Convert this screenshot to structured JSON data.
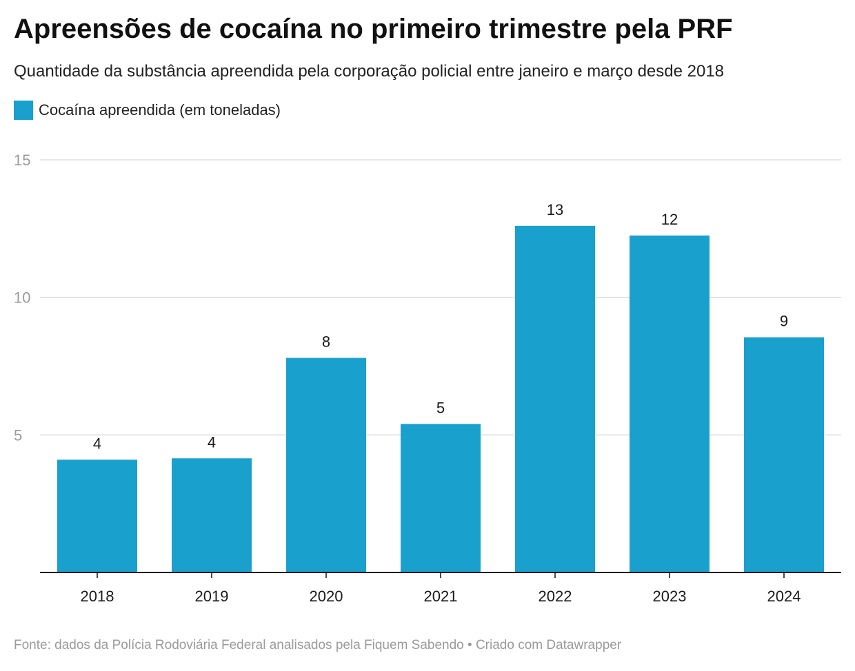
{
  "title": "Apreensões de cocaína no primeiro trimestre pela PRF",
  "subtitle": "Quantidade da substância apreendida pela corporação policial entre janeiro e março desde 2018",
  "footer": "Fonte: dados da Polícia Rodoviária Federal analisados pela Fiquem Sabendo • Criado com Datawrapper",
  "colors": {
    "bar": "#1aa0cd",
    "grid": "#dddddd",
    "axis": "#111111",
    "tick_label": "#9a9a9a"
  },
  "chart_data": {
    "type": "bar",
    "categories": [
      "2018",
      "2019",
      "2020",
      "2021",
      "2022",
      "2023",
      "2024"
    ],
    "series": [
      {
        "name": "Cocaína apreendida (em toneladas)",
        "values": [
          4.1,
          4.15,
          7.8,
          5.4,
          12.6,
          12.25,
          8.55
        ],
        "labels": [
          "4",
          "4",
          "8",
          "5",
          "13",
          "12",
          "9"
        ]
      }
    ],
    "ylim": [
      0,
      15
    ],
    "yticks": [
      5,
      10,
      15
    ],
    "grid": true,
    "legend": "top-left"
  }
}
